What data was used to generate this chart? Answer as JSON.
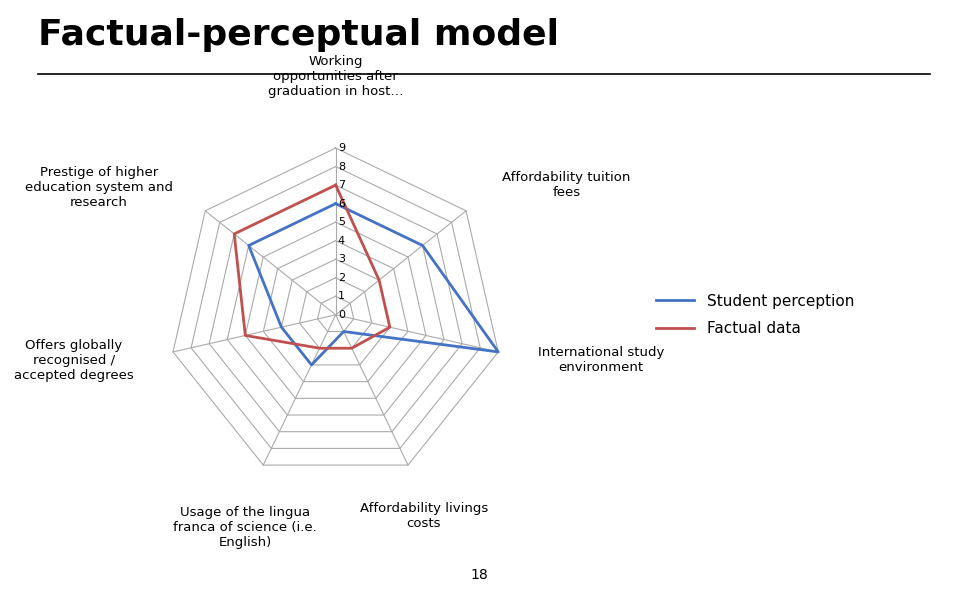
{
  "title": "Factual-perceptual model",
  "categories": [
    "Working\nopportunities after\ngraduation in host…",
    "Affordability tuition\nfees",
    "International study\nenvironment",
    "Affordability livings\ncosts",
    "Usage of the lingua\nfranca of science (i.e.\nEnglish)",
    "Offers globally\nrecognised /\naccepted degrees",
    "Prestige of higher\neducation system and\nresearch"
  ],
  "student_perception": [
    6,
    6,
    9,
    1,
    3,
    3,
    6
  ],
  "factual_data": [
    7,
    3,
    3,
    2,
    2,
    5,
    7
  ],
  "max_val": 9,
  "student_color": "#4472C4",
  "factual_color": "#C0504D",
  "grid_color": "#AAAAAA",
  "spoke_color": "#AAAAAA",
  "background_color": "#FFFFFF",
  "title_fontsize": 26,
  "label_fontsize": 9.5,
  "tick_fontsize": 8,
  "legend_fontsize": 11,
  "footer_text": "18",
  "legend_labels": [
    "Student perception",
    "Factual data"
  ]
}
